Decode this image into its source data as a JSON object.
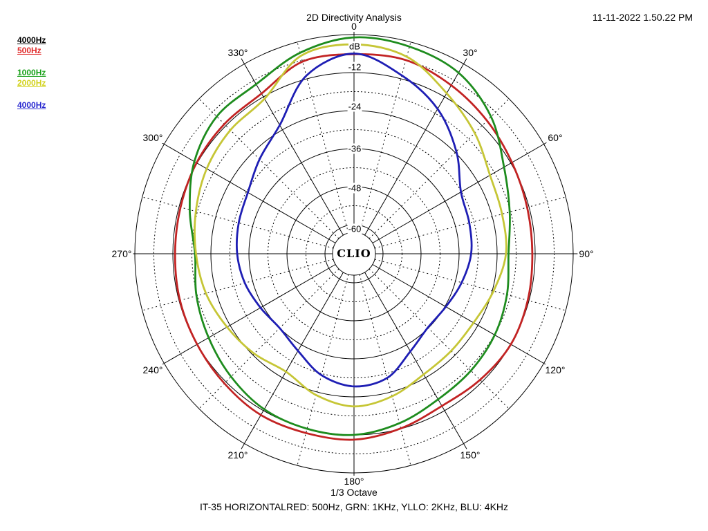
{
  "header": {
    "title": "2D Directivity Analysis",
    "timestamp": "11-11-2022 1.50.22 PM"
  },
  "legend": {
    "groups": [
      [
        {
          "label": "4000Hz",
          "color": "#000000"
        },
        {
          "label": "500Hz",
          "color": "#e02828"
        }
      ],
      [
        {
          "label": "1000Hz",
          "color": "#18a018"
        },
        {
          "label": "2000Hz",
          "color": "#d2d21e"
        }
      ],
      [
        {
          "label": "4000Hz",
          "color": "#2828d0"
        }
      ]
    ]
  },
  "plot": {
    "center_label": "CLIO",
    "units_label": "dB",
    "angle_labels": [
      "0",
      "30°",
      "60°",
      "90°",
      "120°",
      "150°",
      "180°",
      "210°",
      "240°",
      "270°",
      "300°",
      "330°"
    ],
    "radial_labels": [
      {
        "db": -12,
        "text": "-12"
      },
      {
        "db": -24,
        "text": "-24"
      },
      {
        "db": -36,
        "text": "-36"
      },
      {
        "db": -48,
        "text": "-48"
      },
      {
        "db": -60,
        "text": "-60"
      }
    ],
    "grid_color": "#000000"
  },
  "footer": {
    "octave": "1/3 Octave",
    "caption": "IT-35 HORIZONTALRED: 500Hz, GRN: 1KHz, YLLO: 2KHz, BLU: 4KHz"
  },
  "chart_data": {
    "type": "line",
    "coordinate_system": "polar",
    "title": "2D Directivity Analysis",
    "subtitle": "1/3 Octave",
    "angle_unit": "degrees",
    "angle_zero": "top",
    "angle_direction": "clockwise",
    "r_axis": {
      "label": "dB",
      "outer_db": 0,
      "ring_step_db": 6,
      "solid_ring_step_db": 12,
      "labeled_rings_db": [
        -12,
        -24,
        -36,
        -48,
        -60
      ],
      "min_shown_db": -60
    },
    "angles_deg": [
      0,
      15,
      30,
      45,
      60,
      75,
      90,
      105,
      120,
      135,
      150,
      165,
      180,
      195,
      210,
      225,
      240,
      255,
      270,
      285,
      300,
      315,
      330,
      345
    ],
    "series": [
      {
        "name": "500Hz",
        "color": "#c22323",
        "values_db": [
          -6.2,
          -5.9,
          -7.8,
          -9.8,
          -11.6,
          -12.6,
          -12.9,
          -12.4,
          -12.0,
          -12.9,
          -13.7,
          -12.1,
          -10.5,
          -10.6,
          -10.4,
          -11.3,
          -12.0,
          -12.3,
          -12.7,
          -12.5,
          -11.8,
          -11.3,
          -10.8,
          -6.4
        ]
      },
      {
        "name": "1000Hz",
        "color": "#1e8c1e",
        "values_db": [
          -0.9,
          -1.5,
          -3.2,
          -8.0,
          -14.5,
          -18.3,
          -20.4,
          -19.2,
          -17.9,
          -17.0,
          -16.1,
          -13.8,
          -12.0,
          -12.0,
          -12.5,
          -14.3,
          -16.2,
          -17.7,
          -19.0,
          -15.5,
          -11.0,
          -7.9,
          -7.4,
          -3.5
        ]
      },
      {
        "name": "2000Hz",
        "color": "#c6c636",
        "values_db": [
          -3.1,
          -4.8,
          -10.7,
          -15.3,
          -19.6,
          -20.8,
          -21.2,
          -23.6,
          -25.6,
          -25.8,
          -25.2,
          -22.6,
          -21.0,
          -23.0,
          -26.2,
          -24.6,
          -22.9,
          -20.8,
          -19.3,
          -17.5,
          -15.5,
          -14.0,
          -12.7,
          -4.5
        ]
      },
      {
        "name": "4000Hz",
        "color": "#1e1eb4",
        "values_db": [
          -6.0,
          -10.9,
          -16.4,
          -23.5,
          -30.2,
          -31.5,
          -32.2,
          -34.0,
          -35.7,
          -36.2,
          -33.6,
          -28.6,
          -27.3,
          -29.5,
          -33.8,
          -36.0,
          -35.1,
          -33.5,
          -32.3,
          -31.5,
          -30.5,
          -27.0,
          -22.3,
          -11.0
        ]
      }
    ]
  }
}
